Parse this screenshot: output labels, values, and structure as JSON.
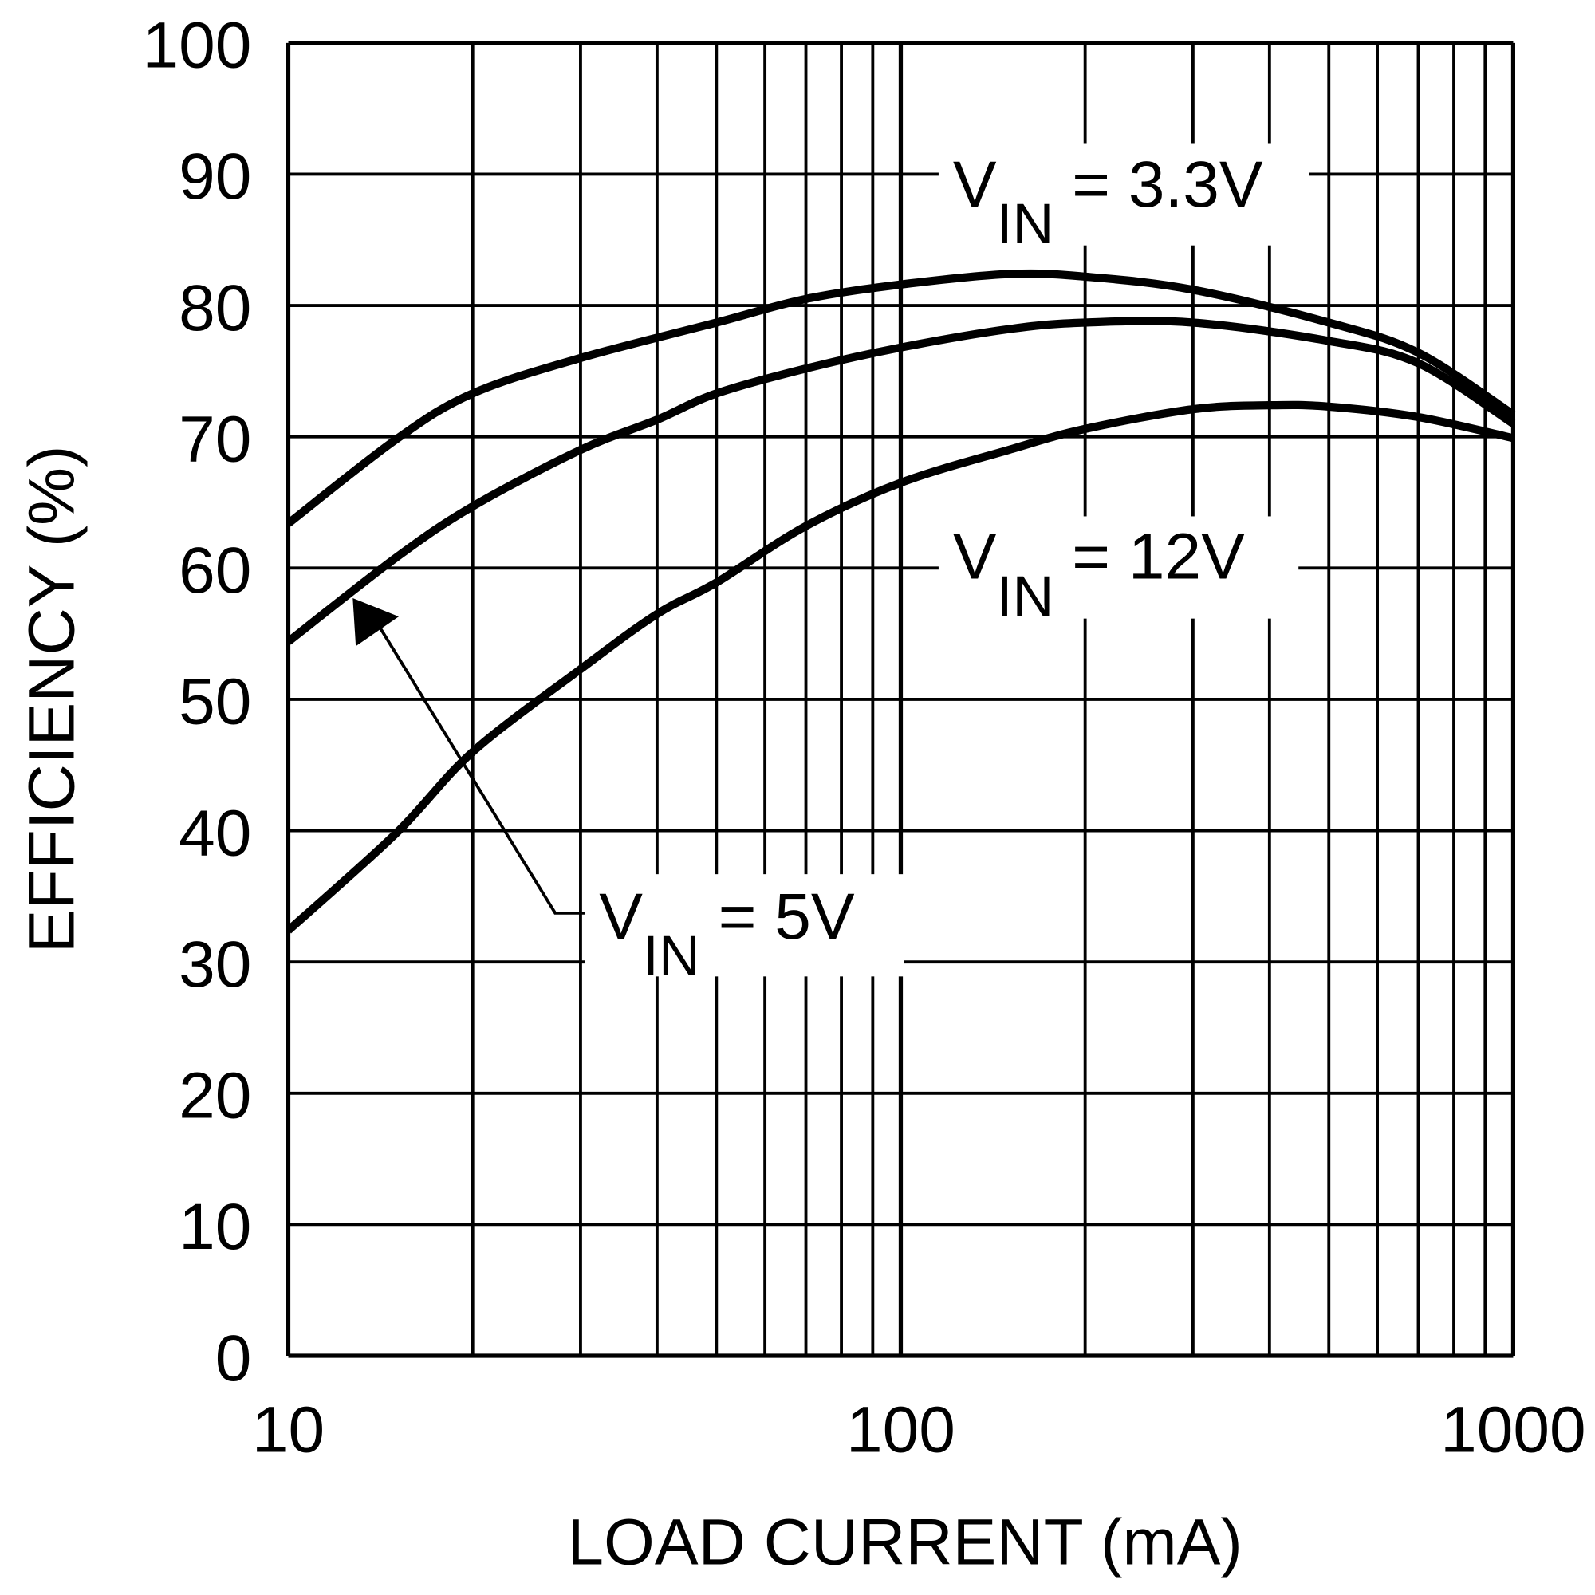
{
  "chart_data": {
    "type": "line",
    "title": "",
    "xlabel": "LOAD CURRENT (mA)",
    "ylabel": "EFFICIENCY (%)",
    "xscale": "log",
    "xlim": [
      10,
      1000
    ],
    "ylim": [
      0,
      100
    ],
    "grid": true,
    "x_ticks": [
      "10",
      "100",
      "1000"
    ],
    "x_tick_values": [
      10,
      100,
      1000
    ],
    "y_ticks": [
      "0",
      "10",
      "20",
      "30",
      "40",
      "50",
      "60",
      "70",
      "80",
      "90",
      "100"
    ],
    "y_tick_values": [
      0,
      10,
      20,
      30,
      40,
      50,
      60,
      70,
      80,
      90,
      100
    ],
    "series": [
      {
        "name": "VIN = 3.3V",
        "label_main": "V",
        "label_sub": "IN",
        "label_rest": " = 3.3V",
        "x": [
          10,
          15,
          20,
          30,
          50,
          70,
          100,
          150,
          200,
          300,
          500,
          700,
          1000
        ],
        "y": [
          63.4,
          69.8,
          73.3,
          76.0,
          78.7,
          80.5,
          81.6,
          82.4,
          82.2,
          81.2,
          78.7,
          76.4,
          71.7
        ]
      },
      {
        "name": "VIN = 5V",
        "label_main": "V",
        "label_sub": "IN",
        "label_rest": " = 5V",
        "x": [
          10,
          15,
          20,
          30,
          40,
          50,
          70,
          100,
          150,
          200,
          300,
          500,
          700,
          1000
        ],
        "y": [
          54.4,
          60.8,
          64.7,
          69.0,
          71.3,
          73.3,
          75.2,
          76.8,
          78.2,
          78.7,
          78.7,
          77.3,
          75.6,
          71.0
        ]
      },
      {
        "name": "VIN = 12V",
        "label_main": "V",
        "label_sub": "IN",
        "label_rest": " = 12V",
        "x": [
          10,
          15,
          20,
          30,
          40,
          50,
          70,
          100,
          150,
          200,
          300,
          400,
          500,
          700,
          1000
        ],
        "y": [
          32.4,
          39.8,
          46.0,
          52.3,
          56.5,
          58.9,
          63.2,
          66.5,
          69.0,
          70.6,
          72.1,
          72.4,
          72.3,
          71.5,
          69.9
        ]
      }
    ],
    "colors": {
      "line": "#000000",
      "grid": "#000000",
      "background": "#ffffff"
    }
  }
}
